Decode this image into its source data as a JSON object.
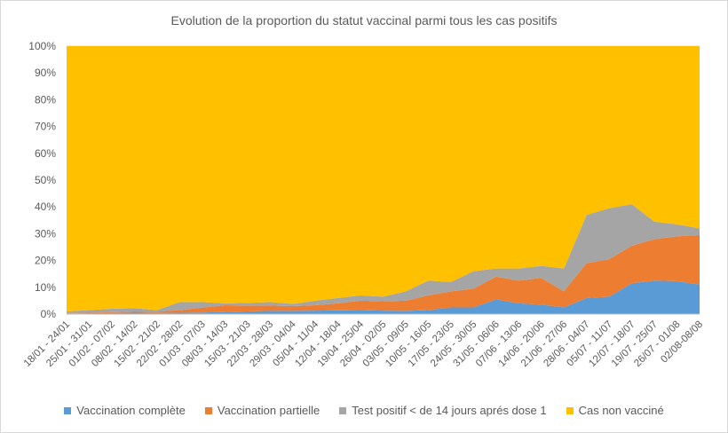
{
  "chart_data": {
    "type": "area",
    "stacked": true,
    "title": "Evolution de  la proportion du statut vaccinal parmi tous les cas positifs",
    "xlabel": "",
    "ylabel": "",
    "ylim": [
      0,
      100
    ],
    "y_ticks": [
      "0%",
      "10%",
      "20%",
      "30%",
      "40%",
      "50%",
      "60%",
      "70%",
      "80%",
      "90%",
      "100%"
    ],
    "categories": [
      "18/01 - 24/01",
      "25/01 - 31/01",
      "01/02 - 07/02",
      "08/02 - 14/02",
      "15/02 - 21/02",
      "22/02 - 28/02",
      "01/03 - 07/03",
      "08/03 - 14/03",
      "15/03 - 21/03",
      "22/03 - 28/03",
      "29/03 - 04/04",
      "05/04 - 11/04",
      "12/04 - 18/04",
      "19/04 - 25/04",
      "26/04 - 02/05",
      "03/05 - 09/05",
      "10/05 - 16/05",
      "17/05 - 23/05",
      "24/05 - 30/05",
      "31/05 - 06/06",
      "07/06 - 13/06",
      "14/06 - 20/06",
      "21/06 - 27/06",
      "28/06 - 04/07",
      "05/07 - 11/07",
      "12/07 - 18/07",
      "19/07 - 25/07",
      "26/07 - 01/08",
      "02/08-08/08"
    ],
    "series": [
      {
        "name": "Vaccination complète",
        "color": "#5b9bd5",
        "values": [
          0.2,
          0.3,
          0.4,
          0.5,
          0.4,
          0.5,
          0.6,
          0.8,
          1.0,
          1.2,
          1.2,
          1.3,
          1.4,
          1.5,
          1.3,
          1.2,
          1.5,
          2.5,
          2.5,
          5.5,
          4.0,
          3.5,
          2.5,
          6.0,
          6.5,
          11.5,
          12.5,
          12.3,
          11.0
        ]
      },
      {
        "name": "Vaccination partielle",
        "color": "#ed7d31",
        "values": [
          0.2,
          0.2,
          0.3,
          0.5,
          0.5,
          1.0,
          1.8,
          2.5,
          2.2,
          2.0,
          1.8,
          2.0,
          2.6,
          3.5,
          3.5,
          3.8,
          5.5,
          6.0,
          7.0,
          8.5,
          8.5,
          10.0,
          6.0,
          13.0,
          14.0,
          14.0,
          15.5,
          16.7,
          18.5
        ]
      },
      {
        "name": "Test positif < de 14 jours aprés dose 1",
        "color": "#a5a5a5",
        "values": [
          0.6,
          1.0,
          1.3,
          1.2,
          0.6,
          3.0,
          2.1,
          0.7,
          1.0,
          1.3,
          0.8,
          1.7,
          2.0,
          2.0,
          1.7,
          3.5,
          5.5,
          3.5,
          6.5,
          3.0,
          4.5,
          4.5,
          8.5,
          18.0,
          19.0,
          15.5,
          6.5,
          4.5,
          2.5
        ]
      },
      {
        "name": "Cas non vacciné",
        "color": "#ffc000",
        "values": [
          99.0,
          98.5,
          98.0,
          97.8,
          98.5,
          95.5,
          95.5,
          96.0,
          95.8,
          95.5,
          96.2,
          95.0,
          94.0,
          93.0,
          93.5,
          91.5,
          87.5,
          88.0,
          84.0,
          83.0,
          83.0,
          82.0,
          83.0,
          63.0,
          60.5,
          59.0,
          65.5,
          66.5,
          68.0
        ]
      }
    ],
    "legend": "bottom"
  }
}
